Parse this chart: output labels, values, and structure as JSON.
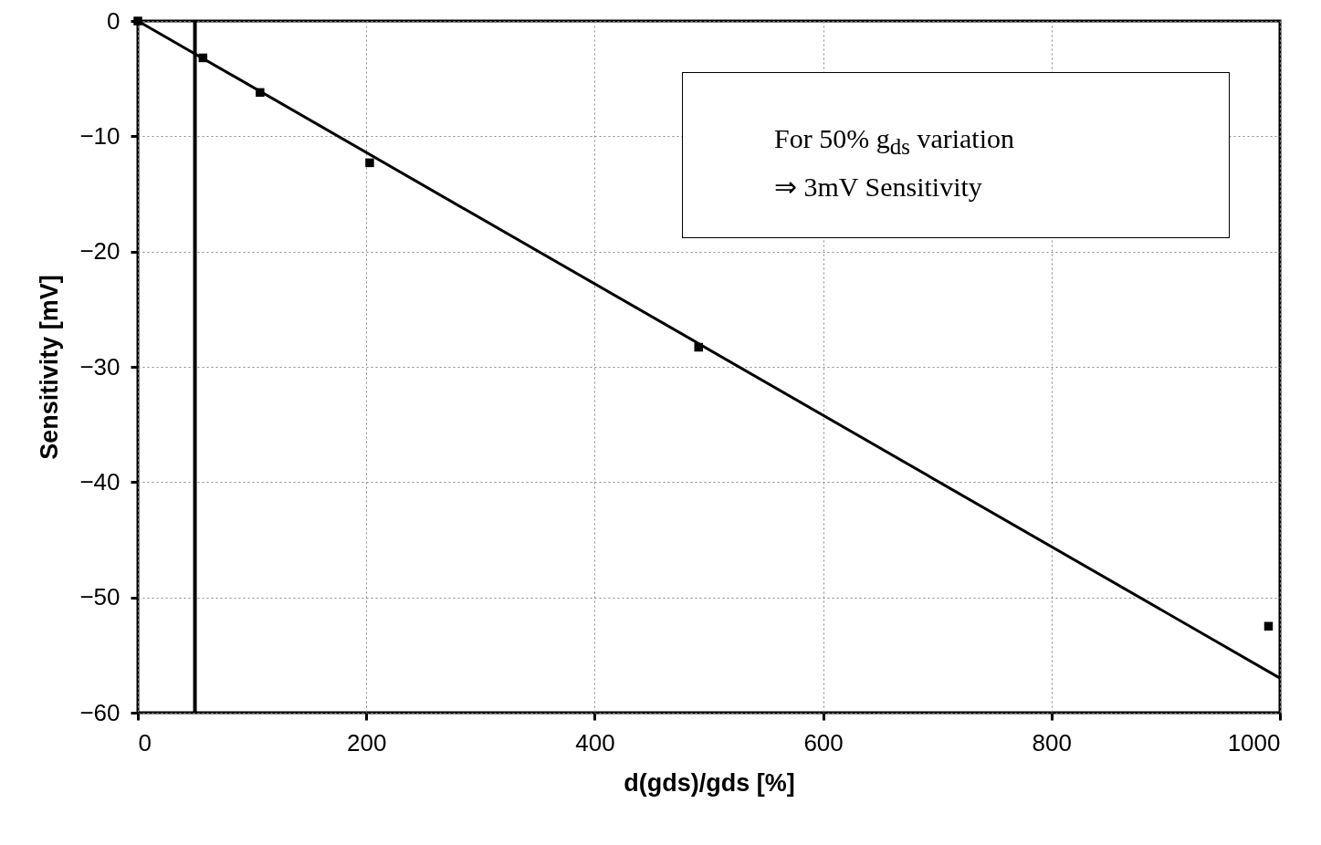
{
  "chart_data": {
    "type": "scatter",
    "xlabel": "d(gds)/gds [%]",
    "ylabel": "Sensitivity [mV]",
    "xlim": [
      0,
      1000
    ],
    "ylim": [
      -60,
      0
    ],
    "xticks": [
      0,
      200,
      400,
      600,
      800,
      1000
    ],
    "yticks": [
      -60,
      -50,
      -40,
      -30,
      -20,
      -10,
      0
    ],
    "grid": true,
    "marker": "square",
    "series": [
      {
        "color": "#000000",
        "x": [
          0,
          57,
          107,
          203,
          491,
          990
        ],
        "values": [
          0,
          -3.2,
          -6.2,
          -12.3,
          -28.3,
          -52.5
        ]
      },
      {
        "type": "line",
        "marker": "none",
        "color": "#000000",
        "x": [
          0,
          1000
        ],
        "values": [
          0,
          -57
        ]
      }
    ],
    "ref_lines": [
      {
        "axis": "x",
        "value": 50,
        "color": "#000000"
      }
    ],
    "annotations": [
      "For 50% g$_{ds}$ variation",
      "⇒ 3mV Sensitivity"
    ]
  }
}
